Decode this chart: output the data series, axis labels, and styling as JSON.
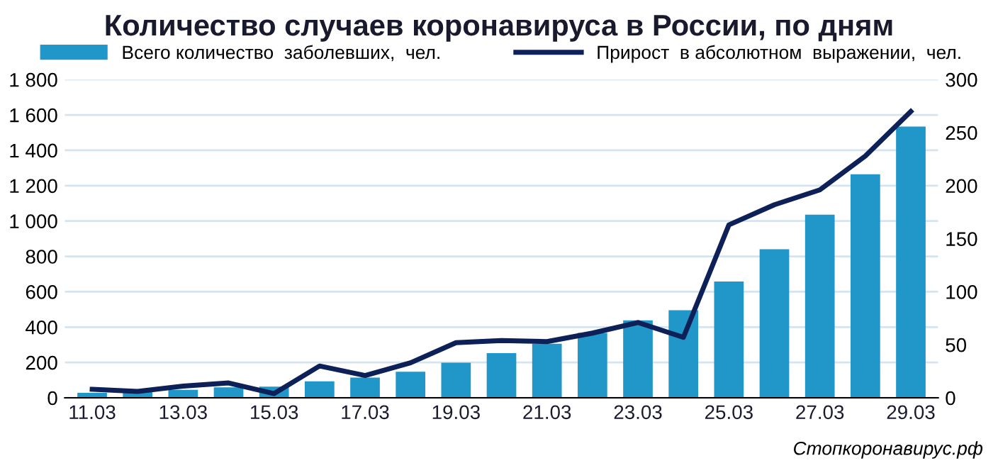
{
  "chart_data": {
    "type": "bar",
    "title": "Количество случаев коронавируса в России, по дням",
    "categories": [
      "11.03",
      null,
      "13.03",
      null,
      "15.03",
      null,
      "17.03",
      null,
      "19.03",
      null,
      "21.03",
      null,
      "23.03",
      null,
      "25.03",
      null,
      "27.03",
      null,
      "29.03"
    ],
    "series": [
      {
        "name": "Всего количество  заболевших,  чел.",
        "color": "#2196c9",
        "values": [
          28,
          34,
          45,
          59,
          63,
          93,
          114,
          147,
          199,
          253,
          306,
          367,
          438,
          495,
          658,
          840,
          1036,
          1264,
          1534
        ]
      },
      {
        "name": "Прирост  в абсолютном  выражении,  чел.",
        "type": "line",
        "axis": "y2",
        "color": "#0d2057",
        "values": [
          8,
          6,
          11,
          14,
          4,
          30,
          21,
          33,
          52,
          54,
          53,
          61,
          71,
          57,
          163,
          182,
          196,
          228,
          270
        ]
      }
    ],
    "ylim": [
      0,
      1800
    ],
    "yticks": [
      0,
      {
        "value": 200,
        "label": "200"
      },
      {
        "value": 400,
        "label": "400"
      },
      {
        "value": 600,
        "label": "600"
      },
      {
        "value": 800,
        "label": "800"
      },
      {
        "value": 1000,
        "label": "1 000"
      },
      {
        "value": 1200,
        "label": "1 200"
      },
      {
        "value": 1400,
        "label": "1 400"
      },
      {
        "value": 1600,
        "label": "1 600"
      },
      {
        "value": 1800,
        "label": "1 800"
      }
    ],
    "y2lim": [
      0,
      300
    ],
    "y2ticks": [
      0,
      50,
      100,
      150,
      200,
      250,
      300
    ],
    "grid": "y",
    "legend": "top",
    "marker": "none",
    "line_style": "solid",
    "annotations": [
      "Стопкоронавирус.рф"
    ]
  }
}
